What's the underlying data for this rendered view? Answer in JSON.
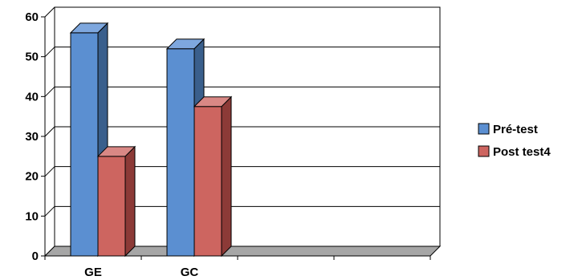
{
  "chart_data": {
    "type": "bar",
    "title": "",
    "xlabel": "",
    "ylabel": "",
    "categories": [
      "GE",
      "GC",
      "",
      ""
    ],
    "series": [
      {
        "name": "Pré-test",
        "values": [
          56,
          52,
          null,
          null
        ],
        "color": "#5B8FD1",
        "side_color": "#3A5F8C",
        "top_color": "#7EA7DE"
      },
      {
        "name": "Post test4",
        "values": [
          25,
          37.5,
          null,
          null
        ],
        "color": "#CD6560",
        "side_color": "#8C3A37",
        "top_color": "#D98885"
      }
    ],
    "ylim": [
      0,
      60
    ],
    "yticks": [
      0,
      10,
      20,
      30,
      40,
      50,
      60
    ],
    "grid": true,
    "legend_position": "right",
    "style": "3d-column"
  }
}
